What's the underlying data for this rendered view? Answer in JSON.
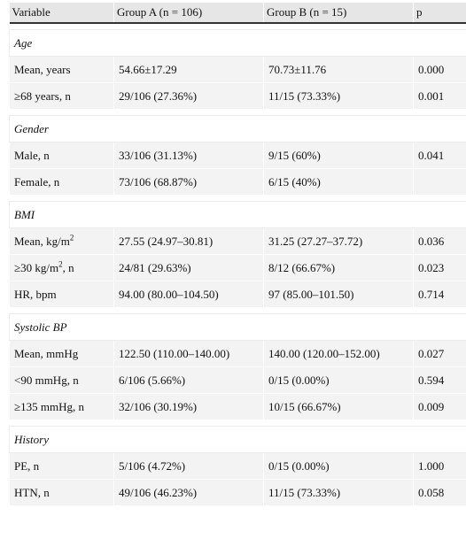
{
  "headers": [
    "Variable",
    "Group A (n = 106)",
    "Group B (n = 15)",
    "p"
  ],
  "sections": {
    "age": {
      "title": "Age",
      "rows": [
        [
          "Mean, years",
          "54.66±17.29",
          "70.73±11.76",
          "0.000"
        ],
        [
          "≥68 years, n",
          "29/106 (27.36%)",
          "11/15 (73.33%)",
          "0.001"
        ]
      ]
    },
    "gender": {
      "title": "Gender",
      "rows": [
        [
          "Male, n",
          "33/106 (31.13%)",
          "9/15 (60%)",
          "0.041"
        ],
        [
          "Female, n",
          "73/106 (68.87%)",
          "6/15 (40%)",
          ""
        ]
      ]
    },
    "bmi": {
      "title": "BMI",
      "rows": [
        [
          "Mean, kg/m",
          "27.55 (24.97–30.81)",
          "31.25 (27.27–37.72)",
          "0.036"
        ],
        [
          "≥30 kg/m",
          "24/81 (29.63%)",
          "8/12 (66.67%)",
          "0.023"
        ],
        [
          "HR, bpm",
          "94.00 (80.00–104.50)",
          "97 (85.00–101.50)",
          "0.714"
        ]
      ],
      "sup": "2",
      "row2_suffix": ", n"
    },
    "systolic": {
      "title": "Systolic BP",
      "rows": [
        [
          "Mean, mmHg",
          "122.50 (110.00–140.00)",
          "140.00 (120.00–152.00)",
          "0.027"
        ],
        [
          "<90 mmHg, n",
          "6/106 (5.66%)",
          "0/15 (0.00%)",
          "0.594"
        ],
        [
          "≥135 mmHg, n",
          "32/106 (30.19%)",
          "10/15 (66.67%)",
          "0.009"
        ]
      ]
    },
    "history": {
      "title": "History",
      "rows": [
        [
          "PE, n",
          "5/106 (4.72%)",
          "0/15 (0.00%)",
          "1.000"
        ],
        [
          "HTN, n",
          "49/106 (46.23%)",
          "11/15 (73.33%)",
          "0.058"
        ]
      ]
    }
  }
}
